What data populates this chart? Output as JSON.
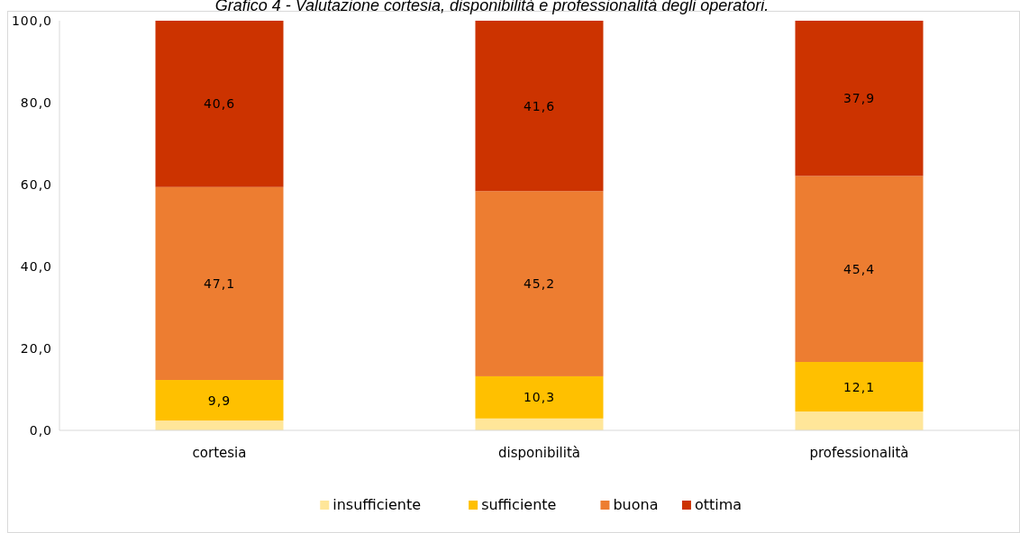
{
  "chart_data": {
    "type": "bar",
    "title": "Grafico 4 - Valutazione cortesia, disponibilità e professionalità degli operatori.",
    "categories": [
      "cortesia",
      "disponibilità",
      "professionalità"
    ],
    "stacked": true,
    "series": [
      {
        "name": "insufficiente",
        "color": "#ffe699",
        "values": [
          2.4,
          2.9,
          4.6
        ],
        "value_labels": [
          null,
          null,
          null
        ]
      },
      {
        "name": "sufficiente",
        "color": "#ffc000",
        "values": [
          9.9,
          10.3,
          12.1
        ],
        "value_labels": [
          "9,9",
          "10,3",
          "12,1"
        ]
      },
      {
        "name": "buona",
        "color": "#ed7d31",
        "values": [
          47.1,
          45.2,
          45.4
        ],
        "value_labels": [
          "47,1",
          "45,2",
          "45,4"
        ]
      },
      {
        "name": "ottima",
        "color": "#cc3300",
        "values": [
          40.6,
          41.6,
          37.9
        ],
        "value_labels": [
          "40,6",
          "41,6",
          "37,9"
        ]
      }
    ],
    "ylim": [
      0,
      100
    ],
    "yticks": [
      {
        "value": 0,
        "label": "0,0"
      },
      {
        "value": 20,
        "label": "20,0"
      },
      {
        "value": 40,
        "label": "40,0"
      },
      {
        "value": 60,
        "label": "60,0"
      },
      {
        "value": 80,
        "label": "80,0"
      },
      {
        "value": 100,
        "label": "100,0"
      }
    ],
    "grid": false,
    "legend": "bottom"
  }
}
